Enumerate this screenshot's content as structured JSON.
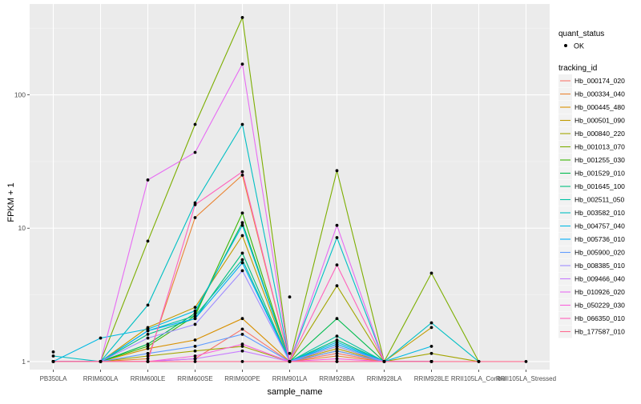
{
  "chart_data": {
    "type": "line",
    "title": "",
    "xlabel": "sample_name",
    "ylabel": "FPKM + 1",
    "y_scale": "log10",
    "ylim": [
      0.87,
      480
    ],
    "yticks": [
      1,
      10,
      100
    ],
    "ytick_labels": [
      "1",
      "10",
      "100"
    ],
    "categories": [
      "PB350LA",
      "RRIM600LA",
      "RRIM600LE",
      "RRIM600SE",
      "RRIM600PE",
      "RRIM901LA",
      "RRIM928BA",
      "RRIM928LA",
      "RRIM928LE",
      "RRII105LA_Control",
      "RRII105LA_Stressed"
    ],
    "legend_point": {
      "title": "quant_status",
      "label": "OK"
    },
    "legend_lines_title": "tracking_id",
    "series": [
      {
        "name": "Hb_000174_020",
        "color": "#F8766D",
        "values": [
          1.0,
          1.0,
          1.0,
          1.05,
          1.75,
          1.0,
          1.15,
          1.0,
          1.0,
          null,
          null
        ]
      },
      {
        "name": "Hb_000334_040",
        "color": "#EA8331",
        "values": [
          1.0,
          1.0,
          1.05,
          12.0,
          25.0,
          1.0,
          1.1,
          1.0,
          1.0,
          null,
          null
        ]
      },
      {
        "name": "Hb_000445_480",
        "color": "#D89000",
        "values": [
          1.0,
          1.0,
          1.25,
          1.45,
          2.1,
          1.0,
          1.2,
          1.0,
          1.0,
          null,
          null
        ]
      },
      {
        "name": "Hb_000501_090",
        "color": "#C09B00",
        "values": [
          1.0,
          1.0,
          1.8,
          2.55,
          8.8,
          1.0,
          1.25,
          1.0,
          1.8,
          null,
          null
        ]
      },
      {
        "name": "Hb_000840_220",
        "color": "#A3A500",
        "values": [
          1.0,
          1.0,
          1.1,
          1.2,
          1.3,
          1.0,
          3.7,
          1.0,
          1.15,
          1.0,
          null
        ]
      },
      {
        "name": "Hb_001013_070",
        "color": "#7CAE00",
        "values": [
          1.0,
          1.0,
          8.0,
          60.0,
          380.0,
          1.0,
          27.0,
          1.0,
          4.6,
          1.0,
          null
        ]
      },
      {
        "name": "Hb_001255_030",
        "color": "#39B600",
        "values": [
          1.0,
          1.0,
          1.3,
          2.2,
          13.0,
          1.0,
          1.3,
          1.0,
          1.0,
          null,
          null
        ]
      },
      {
        "name": "Hb_001529_010",
        "color": "#00BB4E",
        "values": [
          1.0,
          1.0,
          1.35,
          2.3,
          11.0,
          1.0,
          2.1,
          1.0,
          1.0,
          null,
          null
        ]
      },
      {
        "name": "Hb_001645_100",
        "color": "#00BF7D",
        "values": [
          1.0,
          1.0,
          1.6,
          2.1,
          6.5,
          1.0,
          1.45,
          1.0,
          1.0,
          null,
          null
        ]
      },
      {
        "name": "Hb_002511_050",
        "color": "#00C1A3",
        "values": [
          1.0,
          1.0,
          1.7,
          2.2,
          5.8,
          1.0,
          1.55,
          1.0,
          1.0,
          null,
          null
        ]
      },
      {
        "name": "Hb_003582_010",
        "color": "#00BFC4",
        "values": [
          1.1,
          1.0,
          2.65,
          15.5,
          60.0,
          1.0,
          8.5,
          1.0,
          1.95,
          1.0,
          null
        ]
      },
      {
        "name": "Hb_004757_040",
        "color": "#00B9E3",
        "values": [
          1.0,
          1.5,
          1.75,
          2.4,
          10.5,
          1.0,
          1.4,
          1.0,
          1.3,
          null,
          null
        ]
      },
      {
        "name": "Hb_005736_010",
        "color": "#00ADFA",
        "values": [
          1.0,
          1.0,
          1.7,
          2.1,
          5.5,
          1.0,
          1.35,
          1.0,
          1.0,
          null,
          null
        ]
      },
      {
        "name": "Hb_005900_020",
        "color": "#619CFF",
        "values": [
          1.0,
          1.0,
          1.15,
          1.3,
          1.6,
          1.0,
          1.2,
          1.0,
          1.0,
          null,
          null
        ]
      },
      {
        "name": "Hb_008385_010",
        "color": "#9F8CFF",
        "values": [
          1.0,
          1.0,
          1.5,
          1.9,
          4.8,
          1.0,
          1.3,
          1.0,
          1.0,
          null,
          null
        ]
      },
      {
        "name": "Hb_009466_040",
        "color": "#C77CFF",
        "values": [
          1.0,
          1.0,
          1.0,
          1.05,
          1.2,
          1.0,
          1.0,
          1.0,
          1.0,
          null,
          null
        ]
      },
      {
        "name": "Hb_010926_020",
        "color": "#E76BF3",
        "values": [
          1.0,
          1.0,
          23.0,
          37.0,
          170.0,
          1.0,
          10.5,
          1.0,
          1.0,
          null,
          null
        ]
      },
      {
        "name": "Hb_050229_030",
        "color": "#FA62DB",
        "values": [
          1.0,
          1.0,
          1.0,
          1.1,
          1.35,
          1.0,
          1.05,
          1.0,
          1.0,
          null,
          null
        ]
      },
      {
        "name": "Hb_066350_010",
        "color": "#FF62BC",
        "values": [
          1.0,
          1.0,
          1.0,
          15.0,
          26.5,
          1.0,
          5.3,
          1.0,
          1.0,
          null,
          null
        ]
      },
      {
        "name": "Hb_177587_010",
        "color": "#FF6C91",
        "values": [
          1.0,
          1.0,
          1.0,
          1.0,
          1.0,
          1.0,
          1.0,
          1.0,
          1.0,
          1.0,
          1.0
        ]
      }
    ],
    "extra_points": [
      {
        "x": "PB350LA",
        "y": 1.18
      },
      {
        "x": "RRIM901LA",
        "y": 3.05
      },
      {
        "x": "RRIM901LA",
        "y": 1.15
      }
    ]
  }
}
